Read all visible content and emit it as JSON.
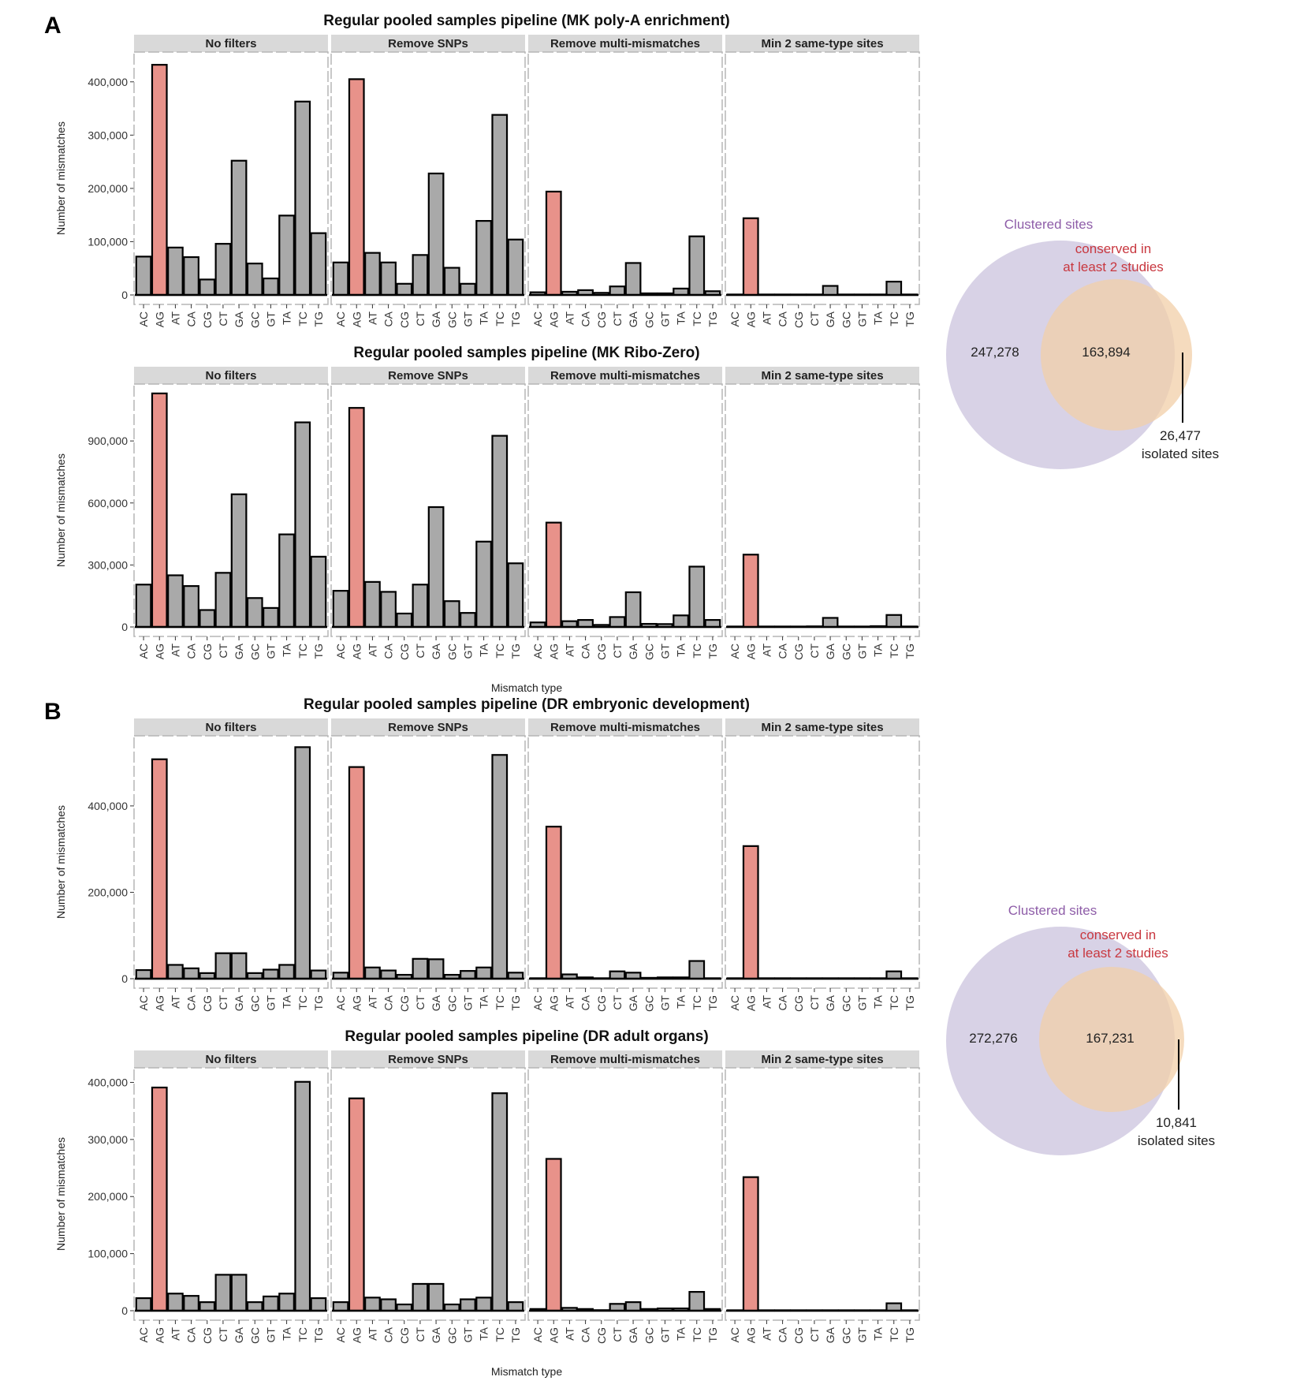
{
  "panel_letters": [
    "A",
    "B"
  ],
  "colors": {
    "highlight_bar": "#E8928A",
    "default_bar": "#A9A9A9",
    "bar_outline": "#000000",
    "strip_bg": "#D9D9D9",
    "venn_clustered": "#D8D2E6",
    "venn_conserved": "#F2CFA8",
    "venn_overlap": "#E6C7B5",
    "clustered_label": "#8E5DA8",
    "conserved_label": "#C8373F"
  },
  "chart_data": [
    {
      "type": "bar",
      "title": "Regular pooled samples pipeline (MK poly-A enrichment)",
      "ylabel": "Number of mismatches",
      "xlabel": "",
      "ylim": [
        0,
        450000
      ],
      "yticks": [
        0,
        100000,
        200000,
        300000,
        400000
      ],
      "ytick_labels": [
        "0",
        "100,000",
        "200,000",
        "300,000",
        "400,000"
      ],
      "highlight_category": "AG",
      "categories": [
        "AC",
        "AG",
        "AT",
        "CA",
        "CG",
        "CT",
        "GA",
        "GC",
        "GT",
        "TA",
        "TC",
        "TG"
      ],
      "facets": [
        {
          "name": "No filters",
          "values": [
            72000,
            432000,
            89000,
            71000,
            29000,
            96000,
            252000,
            59000,
            31000,
            149000,
            363000,
            116000
          ]
        },
        {
          "name": "Remove SNPs",
          "values": [
            61000,
            405000,
            79000,
            61000,
            21000,
            75000,
            228000,
            51000,
            21000,
            139000,
            338000,
            104000
          ]
        },
        {
          "name": "Remove multi-mismatches",
          "values": [
            5000,
            194000,
            6000,
            9000,
            4000,
            16000,
            60000,
            3000,
            3000,
            12000,
            110000,
            7000
          ]
        },
        {
          "name": "Min 2 same-type sites",
          "values": [
            500,
            144000,
            500,
            500,
            300,
            500,
            17000,
            300,
            300,
            500,
            25000,
            300
          ]
        }
      ]
    },
    {
      "type": "bar",
      "title": "Regular pooled samples pipeline (MK Ribo-Zero)",
      "ylabel": "Number of mismatches",
      "xlabel": "Mismatch type",
      "ylim": [
        0,
        1160000
      ],
      "yticks": [
        0,
        300000,
        600000,
        900000
      ],
      "ytick_labels": [
        "0",
        "300,000",
        "600,000",
        "900,000"
      ],
      "highlight_category": "AG",
      "categories": [
        "AC",
        "AG",
        "AT",
        "CA",
        "CG",
        "CT",
        "GA",
        "GC",
        "GT",
        "TA",
        "TC",
        "TG"
      ],
      "facets": [
        {
          "name": "No filters",
          "values": [
            205000,
            1130000,
            250000,
            198000,
            82000,
            262000,
            642000,
            140000,
            92000,
            448000,
            990000,
            340000
          ]
        },
        {
          "name": "Remove SNPs",
          "values": [
            175000,
            1060000,
            218000,
            170000,
            65000,
            205000,
            580000,
            125000,
            68000,
            413000,
            925000,
            308000
          ]
        },
        {
          "name": "Remove multi-mismatches",
          "values": [
            22000,
            505000,
            28000,
            34000,
            10000,
            48000,
            168000,
            15000,
            14000,
            56000,
            292000,
            34000
          ]
        },
        {
          "name": "Min 2 same-type sites",
          "values": [
            1000,
            350000,
            2000,
            2000,
            500,
            3000,
            44000,
            500,
            500,
            4000,
            58000,
            1000
          ]
        }
      ]
    },
    {
      "type": "bar",
      "title": "Regular pooled samples pipeline (DR embryonic development)",
      "ylabel": "Number of mismatches",
      "xlabel": "",
      "ylim": [
        0,
        555000
      ],
      "yticks": [
        0,
        200000,
        400000
      ],
      "ytick_labels": [
        "0",
        "200,000",
        "400,000"
      ],
      "highlight_category": "AG",
      "categories": [
        "AC",
        "AG",
        "AT",
        "CA",
        "CG",
        "CT",
        "GA",
        "GC",
        "GT",
        "TA",
        "TC",
        "TG"
      ],
      "facets": [
        {
          "name": "No filters",
          "values": [
            20000,
            508000,
            32000,
            24000,
            13000,
            59000,
            59000,
            13000,
            21000,
            32000,
            536000,
            19000
          ]
        },
        {
          "name": "Remove SNPs",
          "values": [
            14000,
            490000,
            26000,
            19000,
            9000,
            46000,
            45000,
            9000,
            18000,
            26000,
            518000,
            14000
          ]
        },
        {
          "name": "Remove multi-mismatches",
          "values": [
            1000,
            352000,
            10000,
            3000,
            1000,
            17000,
            14000,
            2000,
            3000,
            3000,
            41000,
            1000
          ]
        },
        {
          "name": "Min 2 same-type sites",
          "values": [
            500,
            307000,
            500,
            500,
            300,
            800,
            800,
            300,
            300,
            500,
            17000,
            300
          ]
        }
      ]
    },
    {
      "type": "bar",
      "title": "Regular pooled samples pipeline (DR adult organs)",
      "ylabel": "Number of mismatches",
      "xlabel": "Mismatch type",
      "ylim": [
        0,
        420000
      ],
      "yticks": [
        0,
        100000,
        200000,
        300000,
        400000
      ],
      "ytick_labels": [
        "0",
        "100,000",
        "200,000",
        "300,000",
        "400,000"
      ],
      "highlight_category": "AG",
      "categories": [
        "AC",
        "AG",
        "AT",
        "CA",
        "CG",
        "CT",
        "GA",
        "GC",
        "GT",
        "TA",
        "TC",
        "TG"
      ],
      "facets": [
        {
          "name": "No filters",
          "values": [
            22000,
            391000,
            30000,
            26000,
            15000,
            63000,
            63000,
            15000,
            25000,
            30000,
            401000,
            22000
          ]
        },
        {
          "name": "Remove SNPs",
          "values": [
            15000,
            372000,
            23000,
            20000,
            11000,
            47000,
            47000,
            11000,
            20000,
            23000,
            381000,
            15000
          ]
        },
        {
          "name": "Remove multi-mismatches",
          "values": [
            3000,
            266000,
            5000,
            3000,
            1000,
            12000,
            15000,
            3000,
            4000,
            4000,
            33000,
            3000
          ]
        },
        {
          "name": "Min 2 same-type sites",
          "values": [
            300,
            234000,
            300,
            300,
            300,
            800,
            800,
            300,
            300,
            500,
            13000,
            300
          ]
        }
      ]
    }
  ],
  "venns": [
    {
      "set_a_label": "Clustered sites",
      "set_b_label_line1": "conserved in",
      "set_b_label_line2": "at least 2 studies",
      "only_a": "247,278",
      "overlap": "163,894",
      "only_b": "26,477",
      "only_b_caption": "isolated sites"
    },
    {
      "set_a_label": "Clustered sites",
      "set_b_label_line1": "conserved in",
      "set_b_label_line2": "at least 2 studies",
      "only_a": "272,276",
      "overlap": "167,231",
      "only_b": "10,841",
      "only_b_caption": "isolated sites"
    }
  ]
}
